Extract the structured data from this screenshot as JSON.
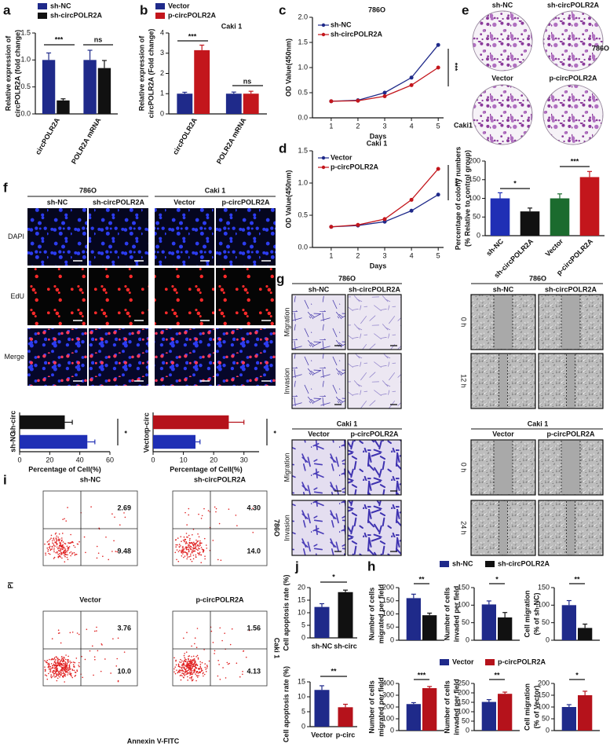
{
  "panel_labels": [
    "a",
    "b",
    "c",
    "d",
    "e",
    "f",
    "g",
    "i",
    "j",
    "h"
  ],
  "colony": {
    "cols_top": [
      "sh-NC",
      "sh-circPOLR2A"
    ],
    "row_top": "786O",
    "cols_bottom": [
      "Vector",
      "p-circPOLR2A"
    ],
    "row_bottom": "Caki1"
  },
  "edu": {
    "groups": [
      "786O",
      "Caki 1"
    ],
    "columns": [
      "sh-NC",
      "sh-circPOLR2A",
      "Vector",
      "p-circPOLR2A"
    ],
    "rows": [
      "DAPI",
      "EdU",
      "Merge"
    ]
  },
  "transwell": [
    {
      "left_title": "786O",
      "right_title": "786O",
      "left_columns": [
        "sh-NC",
        "sh-circPOLR2A"
      ],
      "right_columns": [
        "sh-NC",
        "sh-circPOLR2A"
      ],
      "left_rows": [
        "Migration",
        "Invasion"
      ],
      "right_rows": [
        "0 h",
        "12 h"
      ]
    },
    {
      "left_title": "Caki 1",
      "right_title": "Caki 1",
      "left_columns": [
        "Vector",
        "p-circPOLR2A"
      ],
      "right_columns": [
        "Vector",
        "p-circPOLR2A"
      ],
      "left_rows": [
        "Migration",
        "Invasion"
      ],
      "right_rows": [
        "0 h",
        "24 h"
      ]
    }
  ],
  "flow": {
    "y_label": "PI",
    "x_label": "Annexin V-FITC",
    "row_labels": [
      "786O",
      "Caki 1"
    ],
    "plots": [
      {
        "title": "sh-NC",
        "upper_right": "2.69",
        "lower_right": "9.48"
      },
      {
        "title": "sh-circPOLR2A",
        "upper_right": "4.30",
        "lower_right": "14.0"
      },
      {
        "title": "Vector",
        "upper_right": "3.76",
        "lower_right": "10.0"
      },
      {
        "title": "p-circPOLR2A",
        "upper_right": "1.56",
        "lower_right": "4.13"
      }
    ]
  },
  "chart_data": [
    {
      "type": "bar",
      "y_label": [
        "Relative expression of",
        "circPOLR2A (fold change)"
      ],
      "categories": [
        "circPOLR2A",
        "POLR2A mRNA"
      ],
      "series": [
        {
          "name": "sh-NC",
          "color": "#1f2a8a",
          "values": [
            1.0,
            1.0
          ],
          "errors": [
            0.13,
            0.18
          ]
        },
        {
          "name": "sh-circPOLR2A",
          "color": "#111111",
          "values": [
            0.25,
            0.85
          ],
          "errors": [
            0.03,
            0.14
          ]
        }
      ],
      "ylim": [
        0,
        1.5
      ],
      "yticks": [
        {
          "value": 0,
          "label": "0.0"
        },
        {
          "value": 0.5,
          "label": "0.5"
        },
        {
          "value": 1,
          "label": "1.0"
        },
        {
          "value": 1.5,
          "label": "1.5"
        }
      ],
      "annotations": [
        "***",
        "ns"
      ]
    },
    {
      "type": "bar",
      "title": "Caki 1",
      "y_label": [
        "Relative expression of",
        "circPOLR2A (Fold change)"
      ],
      "categories": [
        "circPOLR2A",
        "POLR2A mRNA"
      ],
      "series": [
        {
          "name": "Vector",
          "color": "#1f2a8a",
          "values": [
            1.0,
            1.0
          ],
          "errors": [
            0.07,
            0.08
          ]
        },
        {
          "name": "p-circPOLR2A",
          "color": "#c3161c",
          "values": [
            3.15,
            1.0
          ],
          "errors": [
            0.25,
            0.12
          ]
        }
      ],
      "ylim": [
        0,
        4
      ],
      "yticks": [
        0,
        1,
        2,
        3,
        4
      ],
      "annotations": [
        "***",
        "ns"
      ]
    },
    {
      "type": "line",
      "title": "786O",
      "y_label": [
        "OD Value(450nm)"
      ],
      "x_label": "Days",
      "x": [
        1,
        2,
        3,
        4,
        5
      ],
      "series": [
        {
          "name": "sh-NC",
          "color": "#1f2a8a",
          "values": [
            0.33,
            0.35,
            0.5,
            0.8,
            1.45
          ]
        },
        {
          "name": "sh-circPOLR2A",
          "color": "#c3161c",
          "values": [
            0.33,
            0.34,
            0.43,
            0.65,
            1.0
          ]
        }
      ],
      "xlim": [
        0.3,
        5.2
      ],
      "xticks": [
        1,
        2,
        3,
        4,
        5
      ],
      "ylim": [
        0,
        2
      ],
      "yticks": [
        {
          "value": 0,
          "label": "0.0"
        },
        {
          "value": 0.5,
          "label": "0.5"
        },
        {
          "value": 1,
          "label": "1.0"
        },
        {
          "value": 1.5,
          "label": "1.5"
        },
        {
          "value": 2,
          "label": "2.0"
        }
      ],
      "annotations": [
        "***"
      ]
    },
    {
      "type": "line",
      "title": "Caki 1",
      "y_label": [
        "OD Value(450nm)"
      ],
      "x_label": "Days",
      "x": [
        1,
        2,
        3,
        4,
        5
      ],
      "series": [
        {
          "name": "Vector",
          "color": "#1f2a8a",
          "values": [
            0.32,
            0.34,
            0.4,
            0.57,
            0.82
          ]
        },
        {
          "name": "p-circPOLR2A",
          "color": "#c3161c",
          "values": [
            0.32,
            0.35,
            0.44,
            0.74,
            1.22
          ]
        }
      ],
      "xlim": [
        0.3,
        5.2
      ],
      "xticks": [
        1,
        2,
        3,
        4,
        5
      ],
      "ylim": [
        0,
        1.5
      ],
      "yticks": [
        {
          "value": 0,
          "label": "0.0"
        },
        {
          "value": 0.5,
          "label": "0.5"
        },
        {
          "value": 1,
          "label": "1.0"
        },
        {
          "value": 1.5,
          "label": "1.5"
        }
      ],
      "annotations": [
        "***"
      ]
    },
    {
      "type": "bar",
      "y_label": [
        "Percentage of colony numbers",
        "(% Relative to control group)"
      ],
      "categories": [
        "sh-NC",
        "sh-circPOLR2A",
        "Vector",
        "p-circPOLR2A"
      ],
      "values": [
        100,
        65,
        100,
        157
      ],
      "errors": [
        15,
        9,
        12,
        15
      ],
      "colors": [
        "#1f2fb5",
        "#111111",
        "#1b6b2e",
        "#c3161c"
      ],
      "ylim": [
        0,
        200
      ],
      "yticks": [
        0,
        50,
        100,
        150,
        200
      ],
      "annotations": [
        "*",
        "***"
      ]
    },
    {
      "type": "hbar",
      "x_label": "Percentage of Cell(%)",
      "categories": [
        "sh-circ",
        "sh-NC"
      ],
      "values": [
        30,
        45
      ],
      "errors": [
        5,
        5
      ],
      "colors": [
        "#111111",
        "#1f2fb5"
      ],
      "xlim": [
        0,
        60
      ],
      "xticks": [
        0,
        20,
        40,
        60
      ],
      "annotations": [
        "*"
      ]
    },
    {
      "type": "hbar",
      "x_label": "Percentage of Cell(%)",
      "categories": [
        "p-circ",
        "Vector"
      ],
      "values": [
        25,
        14
      ],
      "errors": [
        5,
        1.5
      ],
      "colors": [
        "#b5121b",
        "#1f2fb5"
      ],
      "xlim": [
        0,
        35
      ],
      "xticks": [
        0,
        10,
        20,
        30
      ],
      "annotations": [
        "*"
      ]
    },
    {
      "type": "bar",
      "y_label": [
        "Cell apoptosis rate (%)"
      ],
      "categories": [
        "sh-NC",
        "sh-circ"
      ],
      "values": [
        12.3,
        18.2
      ],
      "errors": [
        1.3,
        0.8
      ],
      "colors": [
        "#1f2a8a",
        "#111111"
      ],
      "ylim": [
        0,
        20
      ],
      "yticks": [
        0,
        5,
        10,
        15,
        20
      ],
      "annotations": [
        "*"
      ]
    },
    {
      "type": "bar",
      "y_label": [
        "Cell apoptosis rate (%)"
      ],
      "categories": [
        "Vector",
        "p-circ"
      ],
      "values": [
        12.3,
        6.5
      ],
      "errors": [
        1.4,
        1.0
      ],
      "colors": [
        "#1f2a8a",
        "#b5121b"
      ],
      "ylim": [
        0,
        15
      ],
      "yticks": [
        0,
        5,
        10,
        15
      ],
      "annotations": [
        "**"
      ]
    },
    {
      "type": "bar",
      "y_label": [
        "Number of cells",
        "migrated per field"
      ],
      "categories": [
        null
      ],
      "series": [
        {
          "name": "sh-NC",
          "color": "#1f2a8a",
          "values": [
            160
          ],
          "errors": [
            15
          ]
        },
        {
          "name": "sh-circPOLR2A",
          "color": "#111111",
          "values": [
            95
          ],
          "errors": [
            8
          ]
        }
      ],
      "ylim": [
        0,
        200
      ],
      "yticks": [
        0,
        50,
        100,
        150,
        200
      ],
      "annotations": [
        "**"
      ]
    },
    {
      "type": "bar",
      "y_label": [
        "Number of cells",
        "invaded per field"
      ],
      "categories": [
        null
      ],
      "series": [
        {
          "color": "#1f2a8a",
          "values": [
            102
          ],
          "errors": [
            10
          ]
        },
        {
          "color": "#111111",
          "values": [
            65
          ],
          "errors": [
            14
          ]
        }
      ],
      "ylim": [
        0,
        150
      ],
      "yticks": [
        0,
        50,
        100,
        150
      ],
      "annotations": [
        "*"
      ]
    },
    {
      "type": "bar",
      "y_label": [
        "Cell migration",
        "(% of sh-NC)"
      ],
      "categories": [
        null
      ],
      "series": [
        {
          "color": "#1f2a8a",
          "values": [
            100
          ],
          "errors": [
            13
          ]
        },
        {
          "color": "#111111",
          "values": [
            35
          ],
          "errors": [
            11
          ]
        }
      ],
      "ylim": [
        0,
        150
      ],
      "yticks": [
        0,
        50,
        100,
        150
      ],
      "annotations": [
        "**"
      ]
    },
    {
      "type": "bar",
      "y_label": [
        "Number of cells",
        "migrated per field"
      ],
      "categories": [
        null
      ],
      "series": [
        {
          "name": "Vector",
          "color": "#1f2a8a",
          "values": [
            225
          ],
          "errors": [
            12
          ]
        },
        {
          "name": "p-circPOLR2A",
          "color": "#b5121b",
          "values": [
            360
          ],
          "errors": [
            14
          ]
        }
      ],
      "ylim": [
        0,
        400
      ],
      "yticks": [
        0,
        100,
        200,
        300,
        400
      ],
      "annotations": [
        "***"
      ]
    },
    {
      "type": "bar",
      "y_label": [
        "Number of cells",
        "invaded per field"
      ],
      "categories": [
        null
      ],
      "series": [
        {
          "color": "#1f2a8a",
          "values": [
            152
          ],
          "errors": [
            12
          ]
        },
        {
          "color": "#b5121b",
          "values": [
            195
          ],
          "errors": [
            9
          ]
        }
      ],
      "ylim": [
        0,
        250
      ],
      "yticks": [
        0,
        50,
        100,
        150,
        200,
        250
      ],
      "annotations": [
        "**"
      ]
    },
    {
      "type": "bar",
      "y_label": [
        "Cell migration",
        "(% of Vector)"
      ],
      "categories": [
        null
      ],
      "series": [
        {
          "color": "#1f2a8a",
          "values": [
            100
          ],
          "errors": [
            10
          ]
        },
        {
          "color": "#b5121b",
          "values": [
            150
          ],
          "errors": [
            17
          ]
        }
      ],
      "ylim": [
        0,
        200
      ],
      "yticks": [
        0,
        50,
        100,
        150,
        200
      ],
      "annotations": [
        "*"
      ]
    }
  ]
}
